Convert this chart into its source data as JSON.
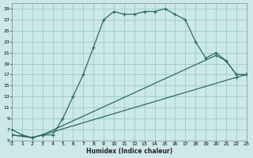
{
  "xlabel": "Humidex (Indice chaleur)",
  "bg_color": "#cce8e8",
  "grid_color": "#99cccc",
  "line_color": "#2d6b5e",
  "xlim": [
    0,
    23
  ],
  "ylim": [
    5,
    30
  ],
  "yticks": [
    5,
    7,
    9,
    11,
    13,
    15,
    17,
    19,
    21,
    23,
    25,
    27,
    29
  ],
  "xticks": [
    0,
    1,
    2,
    3,
    4,
    5,
    6,
    7,
    8,
    9,
    10,
    11,
    12,
    13,
    14,
    15,
    16,
    17,
    18,
    19,
    20,
    21,
    22,
    23
  ],
  "curve_top_x": [
    0,
    1,
    2,
    3,
    4,
    5,
    6,
    7,
    8,
    9,
    10,
    11,
    12,
    13,
    14,
    15,
    16,
    17,
    18,
    19,
    20,
    21,
    22,
    23
  ],
  "curve_top_y": [
    7,
    6,
    5.5,
    6,
    6,
    9,
    13,
    17,
    22,
    27,
    28.5,
    28,
    28,
    28.5,
    28.5,
    29,
    28,
    27,
    23,
    20,
    21,
    19.5,
    17,
    17
  ],
  "curve_mid_x": [
    0,
    2,
    3,
    20,
    21,
    22,
    23
  ],
  "curve_mid_y": [
    6,
    5.5,
    6,
    20.5,
    19.5,
    17,
    17
  ],
  "curve_bot_x": [
    0,
    2,
    3,
    22,
    23
  ],
  "curve_bot_y": [
    6,
    5.5,
    6,
    16.5,
    17
  ]
}
